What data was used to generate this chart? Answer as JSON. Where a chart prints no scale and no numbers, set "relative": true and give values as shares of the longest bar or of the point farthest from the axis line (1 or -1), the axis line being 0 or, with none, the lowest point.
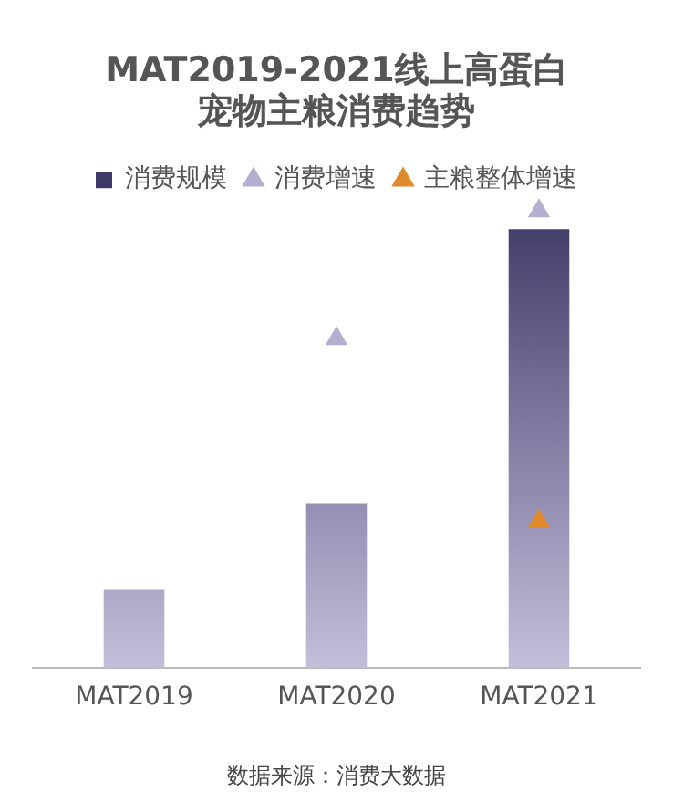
{
  "chart_data": {
    "type": "bar",
    "title": "MAT2019-2021线上高蛋白宠物主粮消费趋势",
    "categories": [
      "MAT2019",
      "MAT2020",
      "MAT2021"
    ],
    "relative": true,
    "legend": "top",
    "grid": false,
    "series": [
      {
        "name": "消费规模",
        "color": "#3f3b68",
        "values": [
          0.17,
          0.36,
          0.96
        ]
      },
      {
        "name": "消费增速",
        "type": "scatter",
        "marker": "triangle",
        "color": "#b4aed0",
        "values": [
          null,
          0.72,
          1
        ]
      },
      {
        "name": "主粮整体增速",
        "type": "scatter",
        "marker": "triangle",
        "color": "#e08a2a",
        "values": [
          null,
          null,
          0.32
        ]
      }
    ],
    "annotations": [
      "数据来源：消费大数据"
    ]
  }
}
